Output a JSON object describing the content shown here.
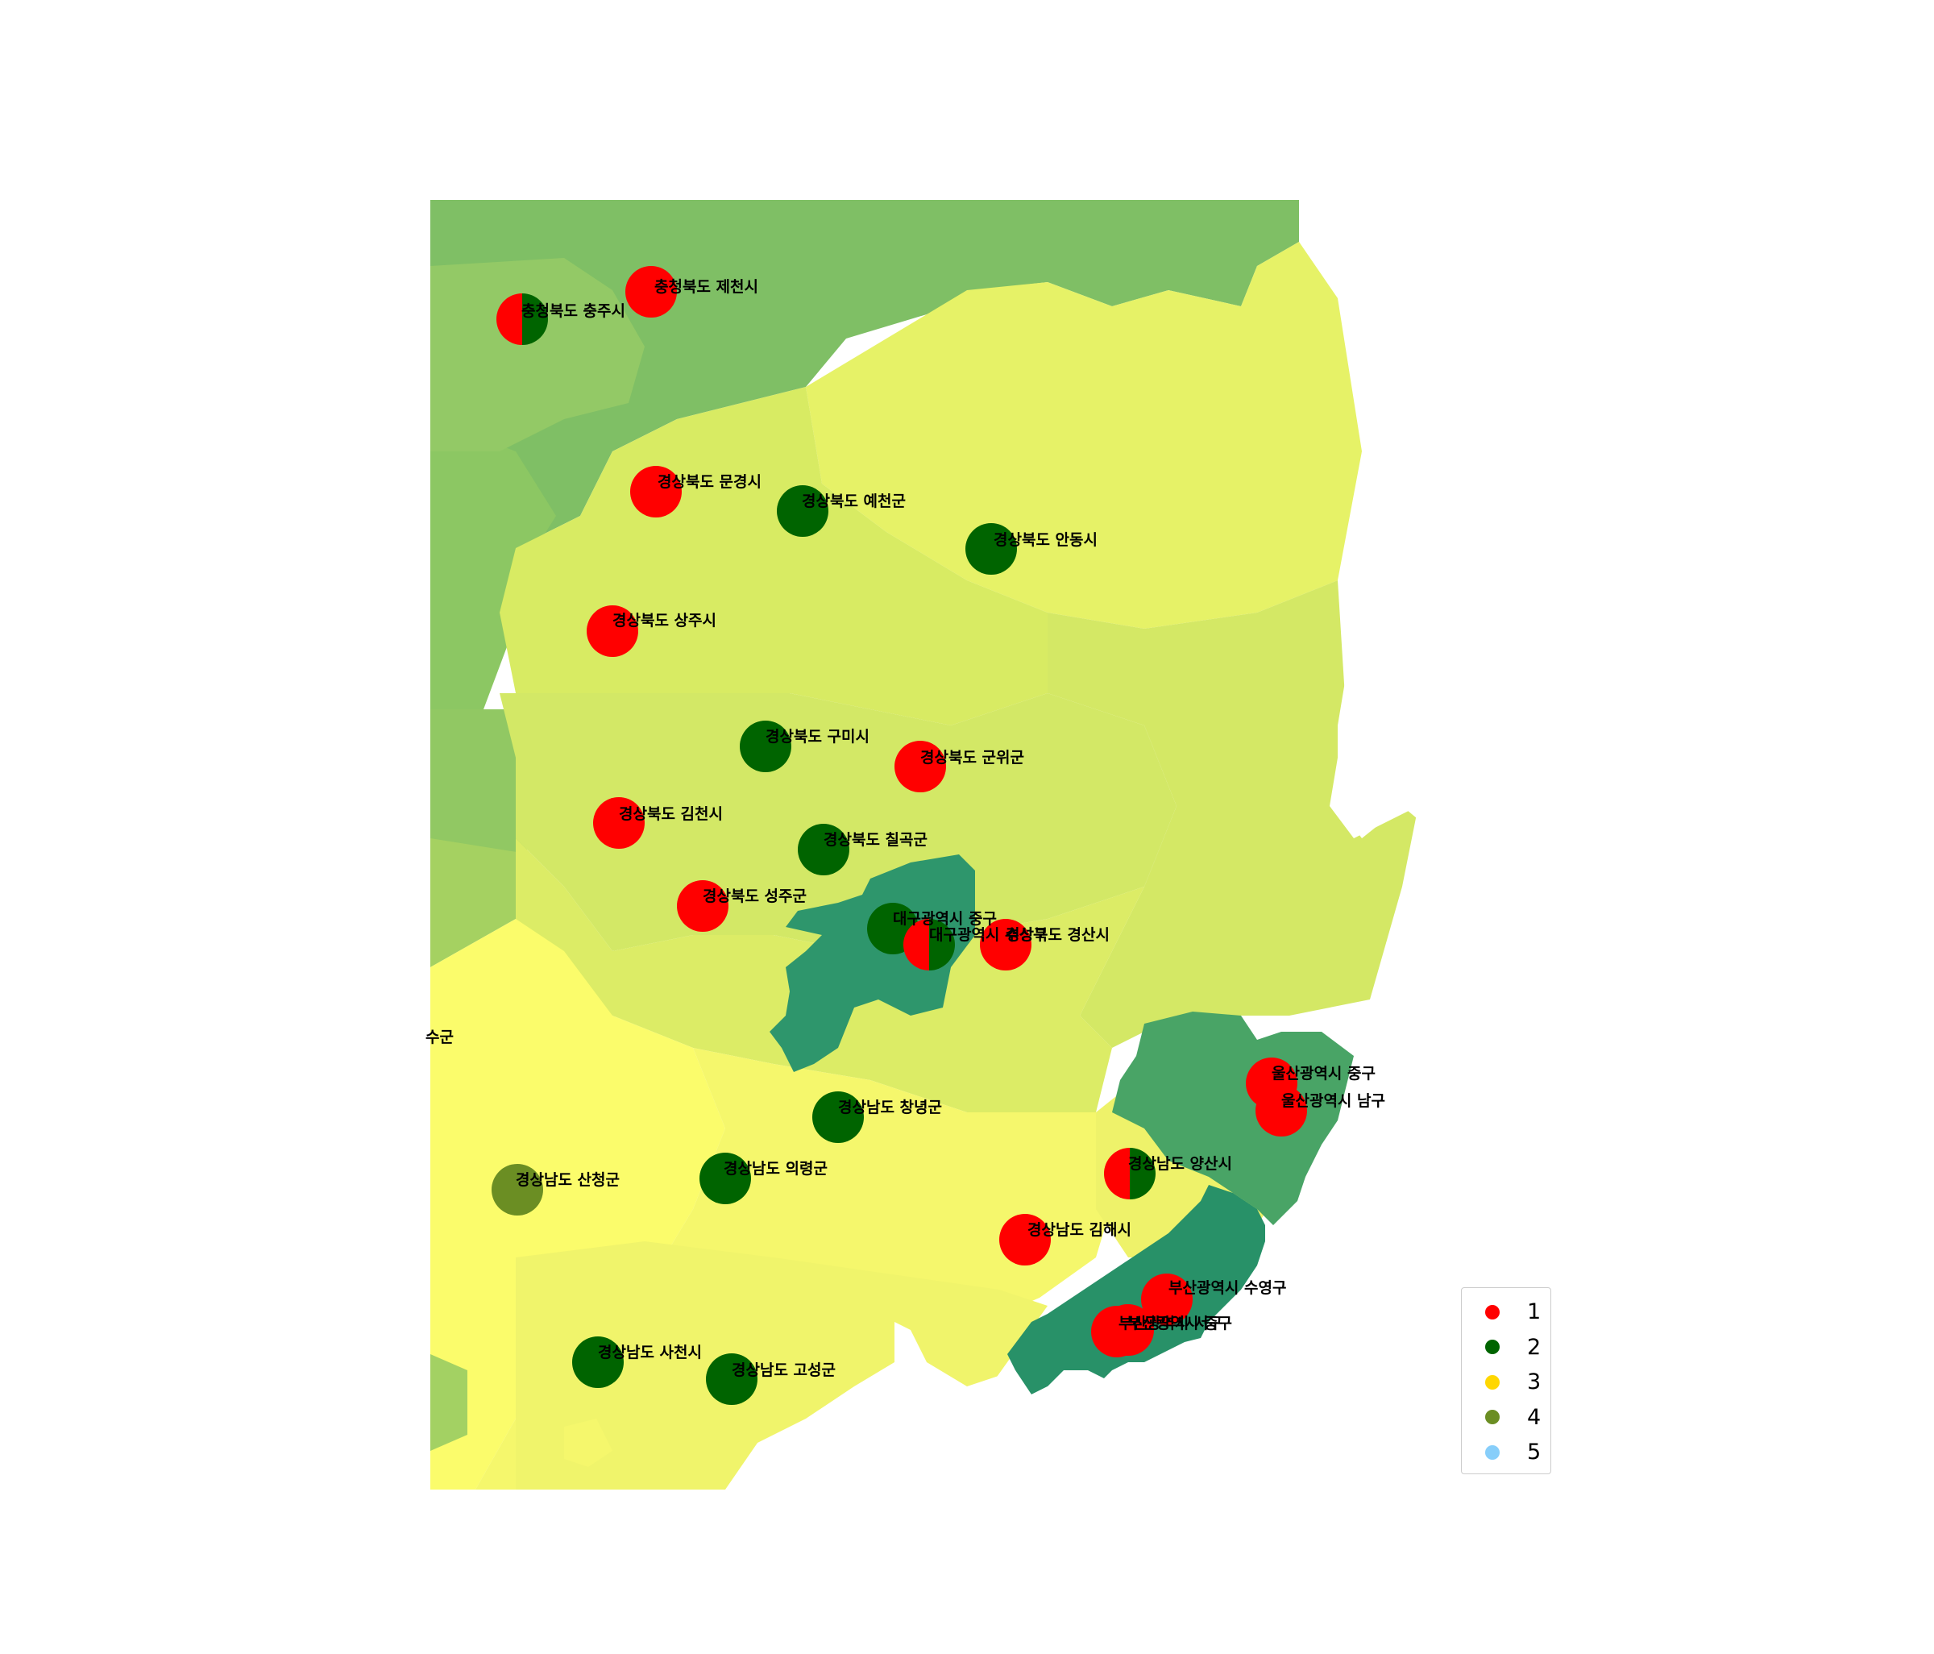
{
  "map": {
    "markers": [
      {
        "label": "충청북도 제천시",
        "colors": [
          "#ff0000"
        ]
      },
      {
        "label": "충청북도 충주시",
        "colors": [
          "#ff0000",
          "#006400"
        ]
      },
      {
        "label": "경상북도 문경시",
        "colors": [
          "#ff0000"
        ]
      },
      {
        "label": "경상북도 예천군",
        "colors": [
          "#006400"
        ]
      },
      {
        "label": "경상북도 안동시",
        "colors": [
          "#006400"
        ]
      },
      {
        "label": "경상북도 상주시",
        "colors": [
          "#ff0000"
        ]
      },
      {
        "label": "경상북도 구미시",
        "colors": [
          "#006400"
        ]
      },
      {
        "label": "경상북도 군위군",
        "colors": [
          "#ff0000"
        ]
      },
      {
        "label": "경상북도 김천시",
        "colors": [
          "#ff0000"
        ]
      },
      {
        "label": "경상북도 칠곡군",
        "colors": [
          "#006400"
        ]
      },
      {
        "label": "경상북도 성주군",
        "colors": [
          "#ff0000"
        ]
      },
      {
        "label": "대구광역시 중구",
        "colors": [
          "#006400"
        ]
      },
      {
        "label": "대구광역시 수성구",
        "colors": [
          "#ff0000",
          "#006400"
        ]
      },
      {
        "label": "경상북도 경산시",
        "colors": [
          "#ff0000"
        ]
      },
      {
        "label": "울산광역시 중구",
        "colors": [
          "#ff0000"
        ]
      },
      {
        "label": "울산광역시 남구",
        "colors": [
          "#ff0000"
        ]
      },
      {
        "label": "경상남도 창녕군",
        "colors": [
          "#006400"
        ]
      },
      {
        "label": "경상남도 의령군",
        "colors": [
          "#006400"
        ]
      },
      {
        "label": "경상남도 산청군",
        "colors": [
          "#6b8e23"
        ]
      },
      {
        "label": "경상남도 양산시",
        "colors": [
          "#ff0000",
          "#006400"
        ]
      },
      {
        "label": "경상남도 김해시",
        "colors": [
          "#ff0000"
        ]
      },
      {
        "label": "부산광역시 수영구",
        "colors": [
          "#ff0000"
        ]
      },
      {
        "label": "부산광역시 서구",
        "colors": [
          "#ff0000"
        ]
      },
      {
        "label": "부산광역시 중구",
        "colors": [
          "#ff0000"
        ]
      },
      {
        "label": "경상남도 사천시",
        "colors": [
          "#006400"
        ]
      },
      {
        "label": "경상남도 고성군",
        "colors": [
          "#006400"
        ]
      }
    ],
    "clipped_label": "수군"
  },
  "legend": {
    "items": [
      {
        "label": "1",
        "color": "#ff0000"
      },
      {
        "label": "2",
        "color": "#006400"
      },
      {
        "label": "3",
        "color": "#ffd700"
      },
      {
        "label": "4",
        "color": "#6b8e23"
      },
      {
        "label": "5",
        "color": "#87cefa"
      }
    ]
  }
}
